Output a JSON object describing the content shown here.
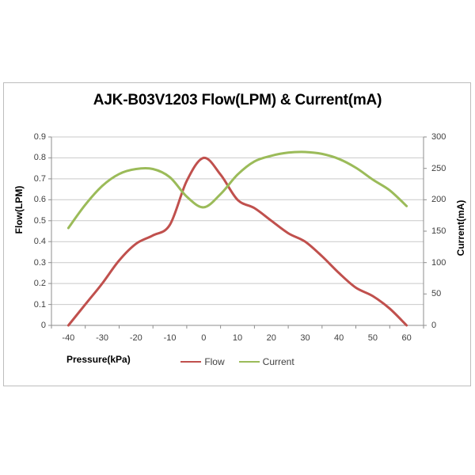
{
  "chart_data": {
    "type": "line",
    "title": "AJK-B03V1203 Flow(LPM) & Current(mA)",
    "xlabel": "Pressure(kPa)",
    "x": [
      -40,
      -35,
      -30,
      -25,
      -20,
      -15,
      -10,
      -5,
      0,
      5,
      10,
      15,
      20,
      25,
      30,
      35,
      40,
      45,
      50,
      55,
      60
    ],
    "x_tick_labels": [
      "-40",
      "-30",
      "-20",
      "-10",
      "0",
      "10",
      "20",
      "30",
      "40",
      "50",
      "60"
    ],
    "series": [
      {
        "name": "Flow",
        "axis": "left",
        "color": "#C0504D",
        "values": [
          0,
          0.1,
          0.2,
          0.31,
          0.39,
          0.43,
          0.48,
          0.69,
          0.8,
          0.72,
          0.6,
          0.56,
          0.5,
          0.44,
          0.4,
          0.33,
          0.25,
          0.18,
          0.14,
          0.08,
          0
        ]
      },
      {
        "name": "Current",
        "axis": "right",
        "color": "#9BBB59",
        "values": [
          155,
          192,
          222,
          241,
          249,
          249,
          236,
          205,
          188,
          209,
          240,
          261,
          270,
          275,
          276,
          273,
          265,
          251,
          232,
          215,
          190
        ]
      }
    ],
    "left_axis": {
      "label": "Flow(LPM)",
      "min": 0,
      "max": 0.9,
      "step": 0.1,
      "tick_labels": [
        "0",
        "0.1",
        "0.2",
        "0.3",
        "0.4",
        "0.5",
        "0.6",
        "0.7",
        "0.8",
        "0.9"
      ]
    },
    "right_axis": {
      "label": "Current(mA)",
      "min": 0,
      "max": 300,
      "step": 50,
      "tick_labels": [
        "0",
        "50",
        "100",
        "150",
        "200",
        "250",
        "300"
      ]
    },
    "grid": true,
    "legend_position": "bottom"
  },
  "colors": {
    "gridline": "#c9c9c9",
    "axis_line": "#8e8e8e",
    "frame_border": "#bdbdbd",
    "text": "#3f3f3f"
  }
}
